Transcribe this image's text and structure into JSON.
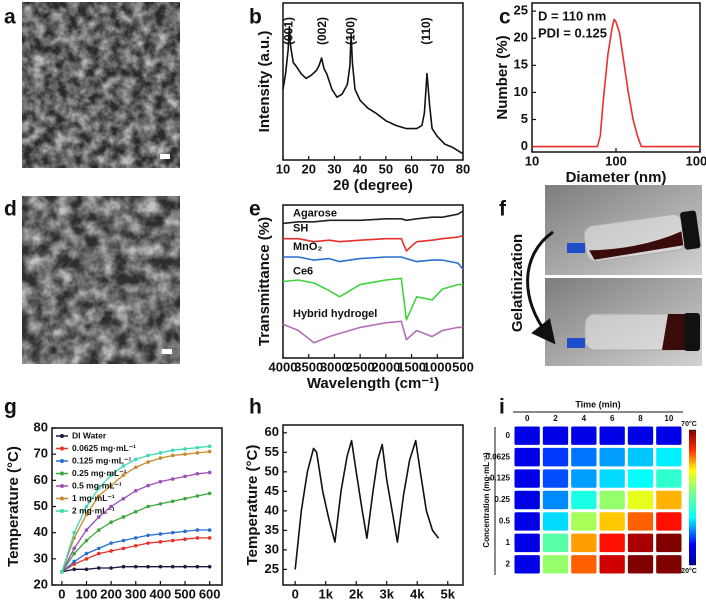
{
  "panel_labels": [
    "a",
    "b",
    "c",
    "d",
    "e",
    "f",
    "g",
    "h",
    "i"
  ],
  "photo_label": "Gelatinization",
  "chart_data": [
    {
      "type": "line",
      "xlabel": "2θ (degree)",
      "ylabel": "Intensity (a.u.)",
      "annotations": [
        "(001)",
        "(002)",
        "(100)",
        "(110)"
      ],
      "xlim": [
        10,
        80
      ],
      "xticks": [
        10,
        20,
        30,
        40,
        50,
        60,
        70,
        80
      ],
      "ylim": [
        0,
        100
      ],
      "x": [
        10,
        11,
        12,
        12.5,
        13,
        14,
        15,
        17,
        19,
        21,
        23,
        24,
        25,
        26,
        27,
        29,
        31,
        33,
        35,
        36,
        36.5,
        37,
        38,
        40,
        43,
        46,
        50,
        54,
        58,
        62,
        64,
        65,
        66,
        67,
        68,
        70,
        73,
        76,
        79,
        80
      ],
      "series": [
        {
          "color": "#111111",
          "values": [
            45,
            55,
            70,
            85,
            72,
            62,
            60,
            55,
            52,
            54,
            57,
            60,
            65,
            58,
            55,
            45,
            40,
            42,
            48,
            60,
            80,
            62,
            45,
            38,
            33,
            30,
            25,
            22,
            20,
            20,
            22,
            30,
            55,
            35,
            20,
            15,
            10,
            8,
            5,
            4
          ]
        }
      ]
    },
    {
      "type": "line",
      "xlabel": "Diameter (nm)",
      "ylabel": "Number (%)",
      "xlog": true,
      "annotations": [
        "D = 110 nm",
        "PDI = 0.125"
      ],
      "xlim": [
        10,
        1000
      ],
      "xticks": [
        10,
        100,
        1000
      ],
      "ylim": [
        -1,
        26.5
      ],
      "yticks": [
        0,
        5,
        10,
        15,
        20,
        25
      ],
      "x": [
        10,
        60,
        65,
        70,
        80,
        90,
        95,
        100,
        110,
        120,
        140,
        160,
        180,
        200,
        1000
      ],
      "series": [
        {
          "color": "#e8302a",
          "values": [
            0,
            0,
            2,
            8,
            17,
            22,
            23.5,
            23,
            21,
            17,
            10,
            5,
            2,
            0,
            0
          ]
        }
      ]
    },
    {
      "type": "line",
      "xlabel": "Wavelength (cm⁻¹)",
      "ylabel": "Transmittance (%)",
      "xlim": [
        4000,
        500
      ],
      "xticks": [
        4000,
        3500,
        3000,
        2500,
        2000,
        1500,
        1000,
        500
      ],
      "ylim": [
        0,
        100
      ],
      "x": [
        4000,
        3700,
        3400,
        3100,
        2900,
        2500,
        2000,
        1700,
        1600,
        1400,
        1100,
        900,
        600,
        500
      ],
      "series": [
        {
          "name": "Agarose",
          "color": "#222222",
          "values": [
            88,
            89,
            89,
            90,
            90,
            90,
            91,
            91,
            90,
            91,
            92,
            92,
            94,
            96
          ]
        },
        {
          "name": "SH",
          "color": "#e8302a",
          "values": [
            78,
            78,
            76,
            77,
            76,
            77,
            78,
            78,
            70,
            76,
            77,
            78,
            79,
            80
          ]
        },
        {
          "name": "MnO₂",
          "color": "#2a6fd0",
          "values": [
            66,
            66,
            64,
            65,
            63,
            65,
            66,
            66,
            65,
            63,
            64,
            64,
            62,
            58
          ]
        },
        {
          "name": "Ce6",
          "color": "#3fd23f",
          "values": [
            50,
            51,
            49,
            44,
            40,
            48,
            51,
            52,
            25,
            40,
            38,
            45,
            48,
            48
          ]
        },
        {
          "name": "Hybrid hydrogel",
          "color": "#b36fb3",
          "values": [
            22,
            18,
            10,
            14,
            16,
            20,
            23,
            24,
            12,
            18,
            14,
            18,
            20,
            20
          ]
        }
      ]
    },
    {
      "type": "line",
      "xlabel": "Time (s)",
      "ylabel": "Temperature (°C)",
      "legend": "upper left",
      "markers": true,
      "xlim": [
        -40,
        650
      ],
      "xticks": [
        0,
        100,
        200,
        300,
        400,
        500,
        600
      ],
      "ylim": [
        20,
        80
      ],
      "yticks": [
        20,
        30,
        40,
        50,
        60,
        70,
        80
      ],
      "x": [
        0,
        50,
        100,
        150,
        200,
        250,
        300,
        350,
        400,
        450,
        500,
        550,
        600
      ],
      "series": [
        {
          "name": "DI Water",
          "color": "#1a1a3a",
          "values": [
            25,
            26,
            26,
            26.5,
            26.5,
            27,
            27,
            27,
            27,
            27,
            27,
            27,
            27
          ]
        },
        {
          "name": "0.0625 mg·mL⁻¹",
          "color": "#e8302a",
          "values": [
            25,
            28,
            30,
            32,
            33,
            34,
            35,
            36,
            36.5,
            37,
            37.5,
            38,
            38
          ]
        },
        {
          "name": "0.125 mg·mL⁻¹",
          "color": "#2a6fd0",
          "values": [
            25,
            29,
            32,
            34,
            36,
            37,
            38,
            39,
            39.5,
            40,
            40.5,
            41,
            41
          ]
        },
        {
          "name": "0.25 mg·mL⁻¹",
          "color": "#3aa83a",
          "values": [
            25,
            32,
            37,
            41,
            44,
            46,
            48,
            50,
            51,
            52,
            53,
            54,
            55
          ]
        },
        {
          "name": "0.5 mg·mL⁻¹",
          "color": "#9b4fb8",
          "values": [
            25,
            34,
            41,
            46,
            50,
            53,
            56,
            58,
            59.5,
            60.5,
            61.5,
            62.5,
            63
          ]
        },
        {
          "name": "1 mg·mL⁻¹",
          "color": "#c98a2a",
          "values": [
            25,
            38,
            47,
            54,
            58,
            62,
            65,
            67,
            68.5,
            69.5,
            70,
            70.5,
            71
          ]
        },
        {
          "name": "2 mg·mL⁻¹",
          "color": "#3ddbb0",
          "values": [
            25,
            40,
            50,
            57,
            62,
            65.5,
            68,
            69.5,
            70.5,
            71.5,
            72,
            72.5,
            73
          ]
        }
      ]
    },
    {
      "type": "line",
      "xlabel": "Time (s)",
      "ylabel": "Temperature (°C)",
      "xlim": [
        -400,
        5500
      ],
      "xticks": [
        0,
        {
          "value": 1000,
          "label": "1k"
        },
        {
          "value": 2000,
          "label": "2k"
        },
        {
          "value": 3000,
          "label": "3k"
        },
        {
          "value": 4000,
          "label": "4k"
        },
        {
          "value": 5000,
          "label": "5k"
        }
      ],
      "ylim": [
        21,
        62
      ],
      "yticks": [
        25,
        30,
        35,
        40,
        45,
        50,
        55,
        60
      ],
      "x": [
        0,
        200,
        400,
        600,
        700,
        900,
        1100,
        1300,
        1500,
        1700,
        1850,
        2000,
        2200,
        2350,
        2550,
        2700,
        2850,
        3000,
        3200,
        3350,
        3550,
        3750,
        3950,
        4100,
        4300,
        4500,
        4700
      ],
      "series": [
        {
          "color": "#111111",
          "values": [
            25,
            40,
            50,
            56,
            55,
            45,
            38,
            32,
            45,
            54,
            58,
            50,
            40,
            33,
            45,
            53,
            57,
            48,
            39,
            32,
            44,
            53,
            58,
            50,
            40,
            35,
            33
          ]
        }
      ]
    },
    {
      "type": "heatmap",
      "xlabel": "Time (min)",
      "ylabel": "Concentration (mg·mL⁻¹)",
      "columns": [
        "0",
        "2",
        "4",
        "6",
        "8",
        "10"
      ],
      "rows": [
        "0",
        "0.0625",
        "0.125",
        "0.25",
        "0.5",
        "1",
        "2"
      ],
      "zlim": [
        20,
        70
      ],
      "zticks": [
        {
          "value": 70,
          "label": "70°C"
        },
        {
          "value": 20,
          "label": "20°C"
        }
      ],
      "values": [
        [
          25,
          25,
          25,
          25,
          25,
          25
        ],
        [
          25,
          29,
          32,
          34,
          36,
          38
        ],
        [
          25,
          30,
          34,
          37,
          39,
          41
        ],
        [
          25,
          33,
          40,
          46,
          50,
          55
        ],
        [
          25,
          37,
          47,
          54,
          59,
          63
        ],
        [
          25,
          43,
          56,
          63,
          68,
          71
        ],
        [
          25,
          46,
          59,
          66,
          70,
          73
        ]
      ]
    }
  ]
}
